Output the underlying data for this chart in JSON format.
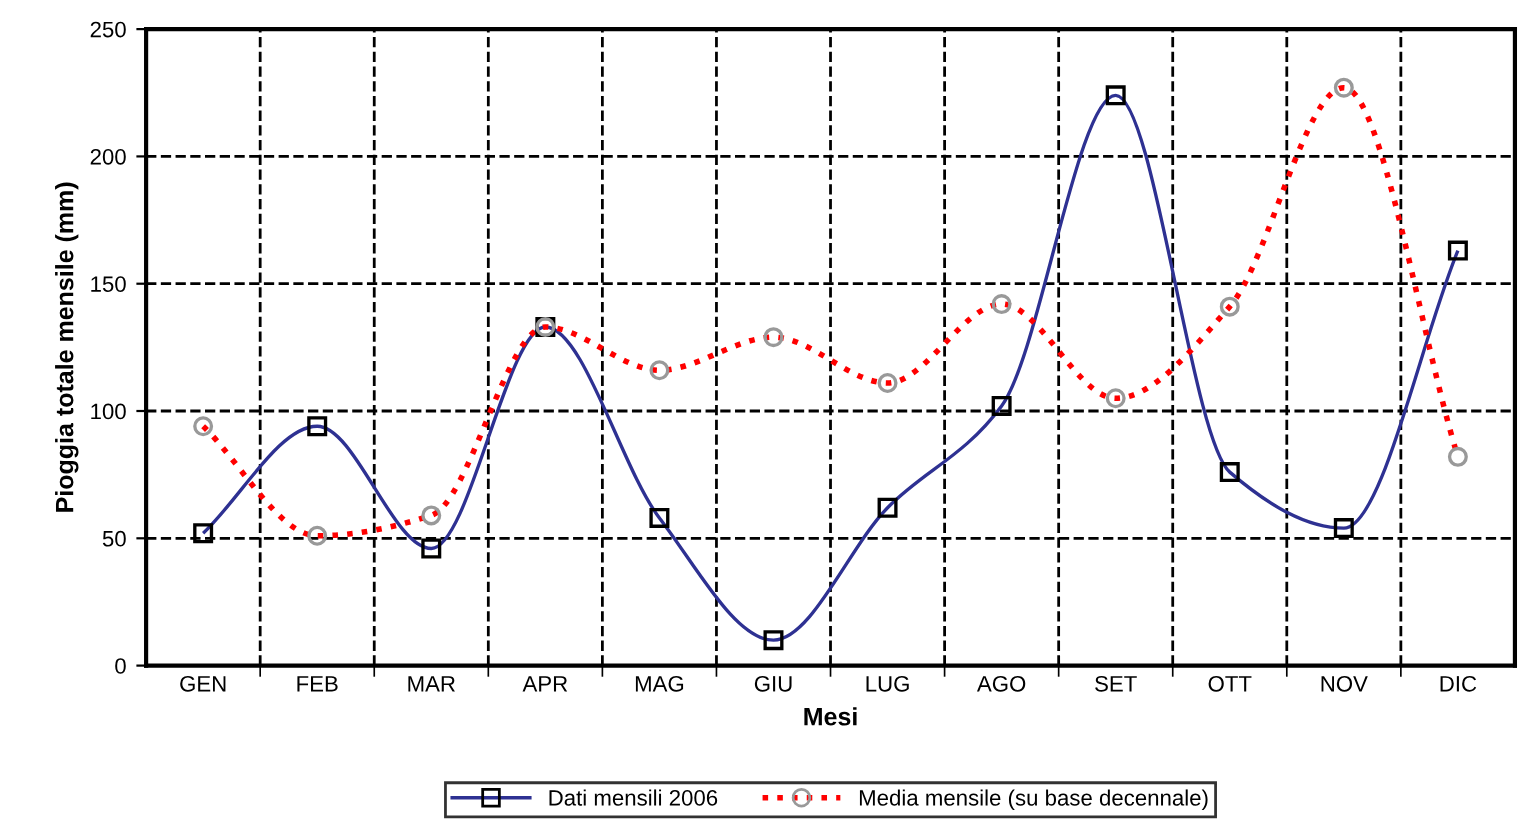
{
  "chart_data": {
    "type": "line",
    "xlabel": "Mesi",
    "ylabel": "Pioggia totale mensile (mm)",
    "categories": [
      "GEN",
      "FEB",
      "MAR",
      "APR",
      "MAG",
      "GIU",
      "LUG",
      "AGO",
      "SET",
      "OTT",
      "NOV",
      "DIC"
    ],
    "series": [
      {
        "name": "Dati mensili 2006",
        "color": "#2e3192",
        "marker": "square",
        "line_style": "solid",
        "values": [
          52,
          94,
          46,
          133,
          58,
          10,
          62,
          102,
          224,
          76,
          54,
          163
        ]
      },
      {
        "name": "Media mensile (su base decennale)",
        "color": "#ff0000",
        "marker": "circle",
        "line_style": "dotted",
        "values": [
          94,
          51,
          59,
          133,
          116,
          129,
          111,
          142,
          105,
          141,
          227,
          82
        ]
      }
    ],
    "ylim": [
      0,
      250
    ],
    "yticks": [
      0,
      50,
      100,
      150,
      200,
      250
    ],
    "grid": true,
    "legend": "bottom"
  }
}
